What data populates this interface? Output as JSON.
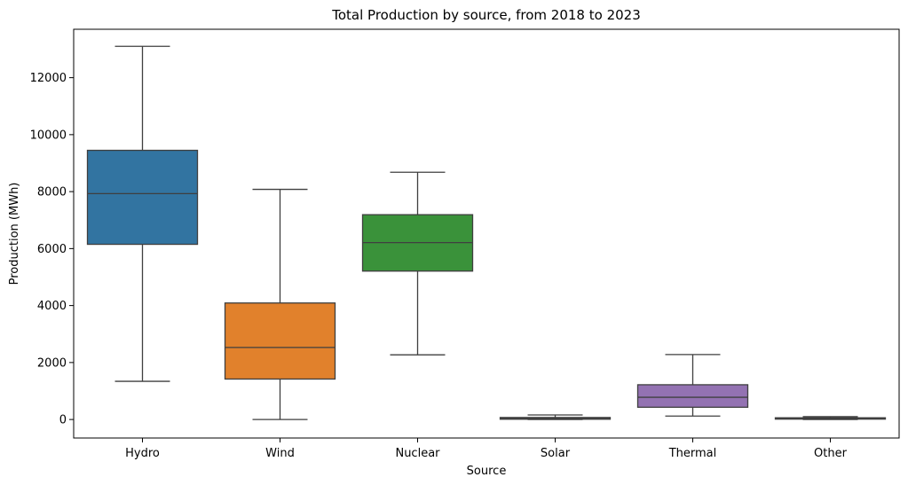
{
  "chart_data": {
    "type": "box",
    "title": "Total Production by source, from 2018 to 2023",
    "xlabel": "Source",
    "ylabel": "Production (MWh)",
    "ylim": [
      -650,
      13700
    ],
    "yticks": [
      0,
      2000,
      4000,
      6000,
      8000,
      10000,
      12000
    ],
    "grid": false,
    "legend": "none",
    "categories": [
      "Hydro",
      "Wind",
      "Nuclear",
      "Solar",
      "Thermal",
      "Other"
    ],
    "colors": [
      "#3274a1",
      "#e1812c",
      "#3a923a",
      "#c03d3e",
      "#9372b2",
      "#845b53"
    ],
    "boxes": [
      {
        "name": "Hydro",
        "whisker_low": 1340,
        "q1": 6150,
        "median": 7930,
        "q3": 9450,
        "whisker_high": 13100
      },
      {
        "name": "Wind",
        "whisker_low": 0,
        "q1": 1420,
        "median": 2530,
        "q3": 4090,
        "whisker_high": 8080
      },
      {
        "name": "Nuclear",
        "whisker_low": 2270,
        "q1": 5210,
        "median": 6210,
        "q3": 7190,
        "whisker_high": 8680
      },
      {
        "name": "Solar",
        "whisker_low": 0,
        "q1": 10,
        "median": 30,
        "q3": 70,
        "whisker_high": 160
      },
      {
        "name": "Thermal",
        "whisker_low": 120,
        "q1": 430,
        "median": 780,
        "q3": 1220,
        "whisker_high": 2280
      },
      {
        "name": "Other",
        "whisker_low": 0,
        "q1": 15,
        "median": 35,
        "q3": 60,
        "whisker_high": 100
      }
    ]
  }
}
